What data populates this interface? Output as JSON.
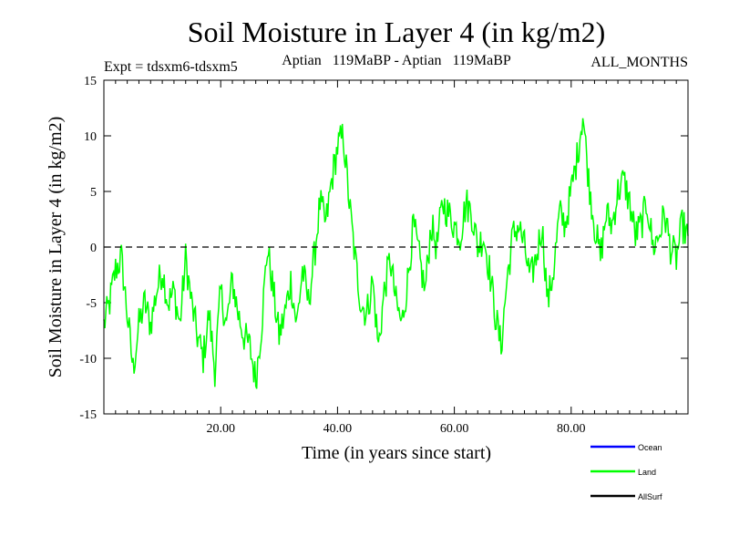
{
  "chart_data": {
    "type": "line",
    "title": "Soil Moisture in Layer 4 (in kg/m2)",
    "subtitle_left": "Expt = tdsxm6-tdsxm5",
    "subtitle_center": "Aptian   119MaBP - Aptian   119MaBP",
    "subtitle_right": "ALL_MONTHS",
    "xlabel": "Time (in years since start)",
    "ylabel": "Soil Moisture in Layer 4 (in kg/m2)",
    "xlim": [
      0,
      100
    ],
    "ylim": [
      -15,
      15
    ],
    "x_ticks": [
      20,
      40,
      60,
      80
    ],
    "x_tick_labels": [
      "20.00",
      "40.00",
      "60.00",
      "80.00"
    ],
    "y_ticks": [
      -15,
      -10,
      -5,
      0,
      5,
      10,
      15
    ],
    "y_tick_labels": [
      "-15",
      "-10",
      "-5",
      "0",
      "5",
      "10",
      "15"
    ],
    "reference_line": {
      "y": 0,
      "style": "dashed",
      "color": "#000000"
    },
    "legend": [
      {
        "name": "Ocean",
        "color": "#0000ff"
      },
      {
        "name": "Land",
        "color": "#00ff00"
      },
      {
        "name": "AllSurf",
        "color": "#000000"
      }
    ],
    "series": [
      {
        "name": "Land",
        "color": "#00ff00",
        "x": [
          0,
          1,
          2,
          3,
          4,
          5,
          6,
          7,
          8,
          9,
          10,
          11,
          12,
          13,
          14,
          15,
          16,
          17,
          18,
          19,
          20,
          21,
          22,
          23,
          24,
          25,
          26,
          27,
          28,
          29,
          30,
          31,
          32,
          33,
          34,
          35,
          36,
          37,
          38,
          39,
          40,
          41,
          42,
          43,
          44,
          45,
          46,
          47,
          48,
          49,
          50,
          51,
          52,
          53,
          54,
          55,
          56,
          57,
          58,
          59,
          60,
          61,
          62,
          63,
          64,
          65,
          66,
          67,
          68,
          69,
          70,
          71,
          72,
          73,
          74,
          75,
          76,
          77,
          78,
          79,
          80,
          81,
          82,
          83,
          84,
          85,
          86,
          87,
          88,
          89,
          90,
          91,
          92,
          93,
          94,
          95,
          96,
          97,
          98,
          99,
          100
        ],
        "values": [
          -7,
          -5,
          -2,
          -1,
          -6,
          -11,
          -7,
          -5,
          -7,
          -4,
          -2,
          -5,
          -4,
          -7,
          -1,
          -5,
          -8,
          -10,
          -6,
          -11,
          -4,
          -7,
          -3,
          -6,
          -8,
          -9,
          -12,
          -7,
          0,
          -4,
          -8,
          -6,
          -3,
          -7,
          -2,
          -5,
          -1,
          4,
          2,
          6,
          9,
          10,
          4,
          -1,
          -5,
          -6,
          -3,
          -9,
          -4,
          -1,
          -5,
          -7,
          -3,
          2,
          -1,
          -4,
          2,
          0,
          4,
          3,
          2,
          1,
          4,
          3,
          0,
          1,
          -2,
          -6,
          -9,
          -3,
          1,
          2,
          0,
          -3,
          -1,
          2,
          -5,
          -2,
          3,
          2,
          5,
          8,
          12,
          6,
          2,
          -1,
          3,
          2,
          5,
          6,
          4,
          1,
          2,
          4,
          0,
          1,
          3,
          0,
          -1,
          2,
          1
        ]
      }
    ]
  }
}
